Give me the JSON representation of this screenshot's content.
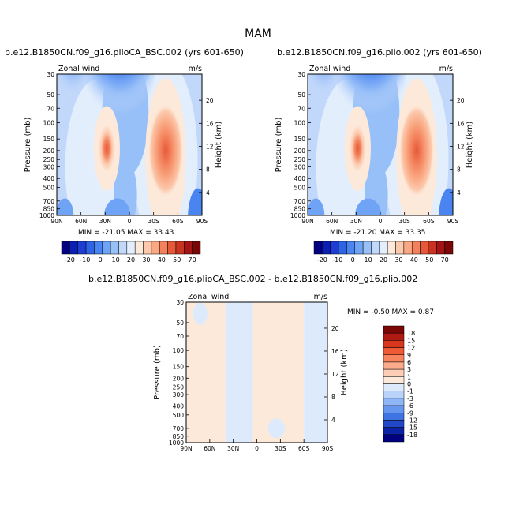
{
  "figure": {
    "title": "MAM"
  },
  "panels": [
    {
      "title": "b.e12.B1850CN.f09_g16.plioCA_BSC.002 (yrs 601-650)",
      "label_left": "Zonal wind",
      "label_right": "m/s",
      "stats": "MIN = -21.05   MAX =   33.43"
    },
    {
      "title": "b.e12.B1850CN.f09_g16.plio.002 (yrs 601-650)",
      "label_left": "Zonal wind",
      "label_right": "m/s",
      "stats": "MIN = -21.20   MAX =   33.35"
    },
    {
      "title": "b.e12.B1850CN.f09_g16.plioCA_BSC.002 - b.e12.B1850CN.f09_g16.plio.002",
      "label_left": "Zonal wind",
      "label_right": "m/s",
      "stats": "MIN =  -0.50   MAX =    0.87"
    }
  ],
  "axes": {
    "ylabel_left": "Pressure (mb)",
    "ylabel_right": "Height (km)",
    "pressure_ticks": [
      "30",
      "50",
      "70",
      "100",
      "150",
      "200",
      "250",
      "300",
      "400",
      "500",
      "700",
      "850",
      "1000"
    ],
    "height_ticks": [
      "20",
      "16",
      "12",
      "8",
      "4"
    ],
    "lat_ticks": [
      "90N",
      "60N",
      "30N",
      "0",
      "30S",
      "60S",
      "90S"
    ]
  },
  "colorbar_top": {
    "labels": [
      "-20",
      "-10",
      "0",
      "10",
      "20",
      "30",
      "40",
      "50",
      "70"
    ],
    "colors": [
      "#000080",
      "#0a1fb4",
      "#1e3ed3",
      "#2f63e6",
      "#4a84f0",
      "#6fa3f5",
      "#97bff8",
      "#c2d8fb",
      "#e3eefd",
      "#fde9da",
      "#fcc9ad",
      "#f9a883",
      "#f3815c",
      "#e6583a",
      "#c93321",
      "#a51414",
      "#7a0606"
    ]
  },
  "colorbar_diff": {
    "labels": [
      "18",
      "15",
      "12",
      "9",
      "6",
      "3",
      "1",
      "0",
      "-1",
      "-3",
      "-6",
      "-9",
      "-12",
      "-15",
      "-18"
    ],
    "colors": [
      "#7a0606",
      "#b01a12",
      "#d8361d",
      "#ef5a36",
      "#f7845f",
      "#fbab8b",
      "#fdcdb5",
      "#fde9da",
      "#dceafc",
      "#b8d2fa",
      "#8fb6f6",
      "#6697ef",
      "#3e73e3",
      "#2148c9",
      "#0b24a6",
      "#000080"
    ]
  },
  "chart_data": [
    {
      "type": "heatmap",
      "title": "b.e12.B1850CN.f09_g16.plioCA_BSC.002 (yrs 601-650)",
      "xlabel": "",
      "ylabel": "Pressure (mb)",
      "x_range": [
        "90N",
        "90S"
      ],
      "y_range_mb": [
        1000,
        30
      ],
      "min": -21.05,
      "max": 33.43,
      "features": [
        {
          "name": "northern subtropical jet",
          "lat": 27,
          "pressure_mb": 200,
          "value": 30
        },
        {
          "name": "southern subtropical jet",
          "lat": -45,
          "pressure_mb": 200,
          "value": 33
        },
        {
          "name": "stratospheric easterlies",
          "lat": 10,
          "pressure_mb": 30,
          "value": -21
        }
      ]
    },
    {
      "type": "heatmap",
      "title": "b.e12.B1850CN.f09_g16.plio.002 (yrs 601-650)",
      "xlabel": "",
      "ylabel": "Pressure (mb)",
      "x_range": [
        "90N",
        "90S"
      ],
      "y_range_mb": [
        1000,
        30
      ],
      "min": -21.2,
      "max": 33.35,
      "features": [
        {
          "name": "northern subtropical jet",
          "lat": 27,
          "pressure_mb": 200,
          "value": 30
        },
        {
          "name": "southern subtropical jet",
          "lat": -45,
          "pressure_mb": 200,
          "value": 33
        },
        {
          "name": "stratospheric easterlies",
          "lat": 10,
          "pressure_mb": 30,
          "value": -21
        }
      ]
    },
    {
      "type": "heatmap",
      "title": "b.e12.B1850CN.f09_g16.plioCA_BSC.002 - b.e12.B1850CN.f09_g16.plio.002",
      "xlabel": "",
      "ylabel": "Pressure (mb)",
      "x_range": [
        "90N",
        "90S"
      ],
      "y_range_mb": [
        1000,
        30
      ],
      "min": -0.5,
      "max": 0.87,
      "regions": [
        {
          "value_class": "0 to 1",
          "lat_from": 90,
          "lat_to": 40
        },
        {
          "value_class": "-1 to 0",
          "lat_from": 40,
          "lat_to": 5
        },
        {
          "value_class": "0 to 1",
          "lat_from": 5,
          "lat_to": -60
        },
        {
          "value_class": "-1 to 0",
          "lat_from": -60,
          "lat_to": -90
        }
      ]
    }
  ]
}
